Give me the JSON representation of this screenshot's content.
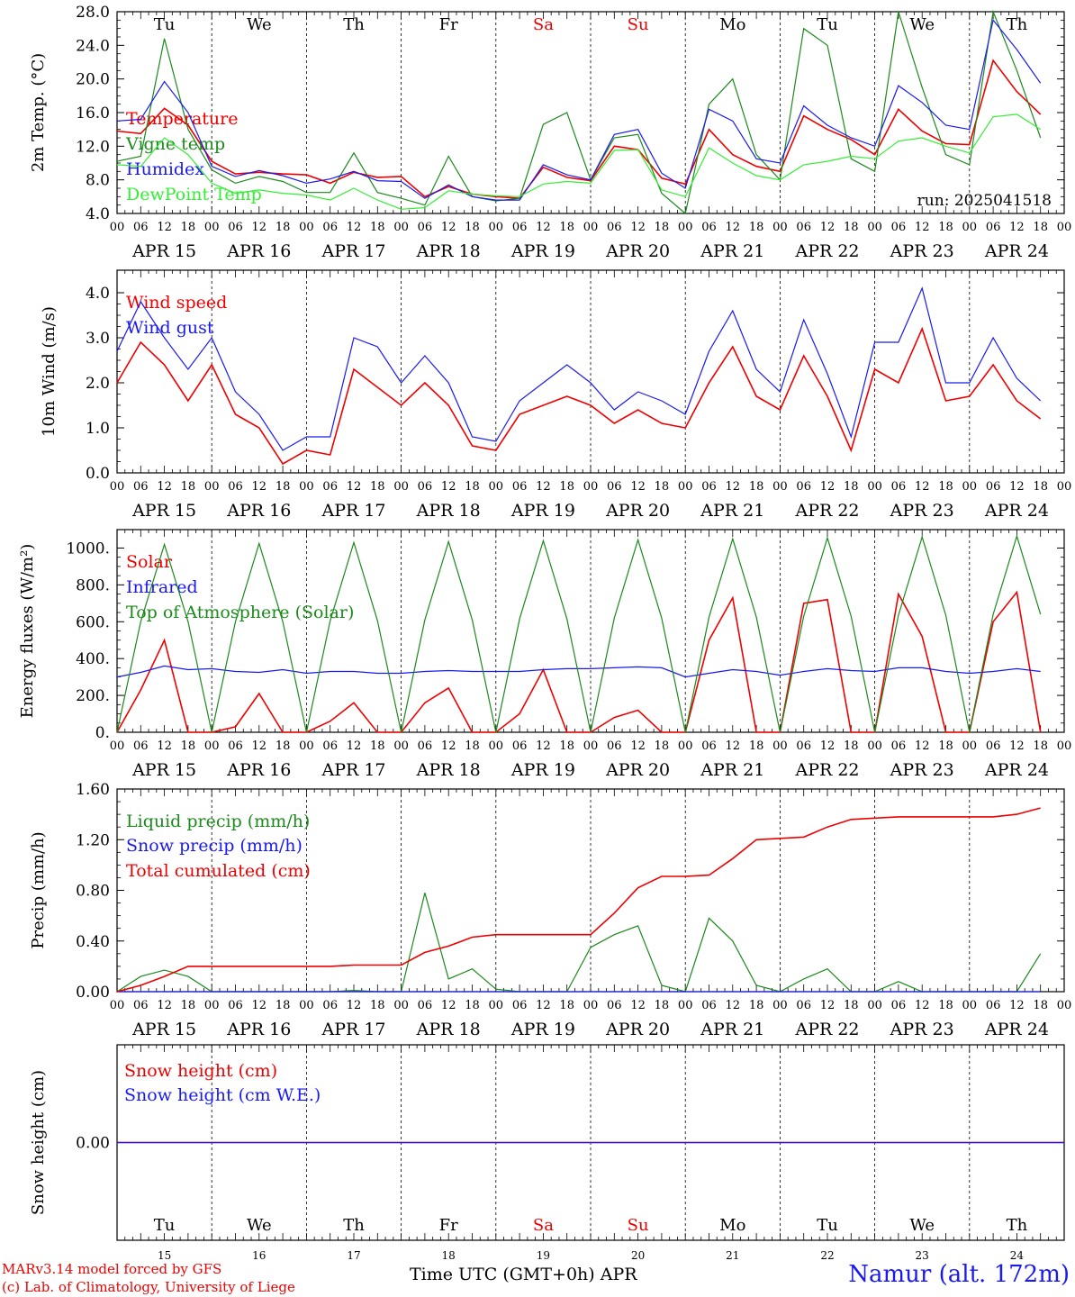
{
  "colors": {
    "red": "#ee0000",
    "green": "#1b8a1b",
    "blue": "#1a1aee",
    "lightgreen": "#33ee33",
    "black": "#000000",
    "weekend": "#ee0000"
  },
  "days": {
    "top": [
      "Tu",
      "We",
      "Th",
      "Fr",
      "Sa",
      "Su",
      "Mo",
      "Tu",
      "We",
      "Th"
    ],
    "weekend_index": [
      4,
      5
    ],
    "dates": [
      "APR 15",
      "APR 16",
      "APR 17",
      "APR 18",
      "APR 19",
      "APR 20",
      "APR 21",
      "APR 22",
      "APR 23",
      "APR 24"
    ],
    "numbers": [
      "15",
      "16",
      "17",
      "18",
      "19",
      "20",
      "21",
      "22",
      "23",
      "24"
    ],
    "hour_ticks": [
      "00",
      "06",
      "12",
      "18"
    ],
    "end_tick": "00"
  },
  "run_label": "run: 2025041518",
  "footer": {
    "credit_1": "MARv3.14 model forced by GFS",
    "credit_2": "(c) Lab. of Climatology, University of Liege",
    "x_title": "Time UTC (GMT+0h) APR",
    "station": "Namur (alt. 172m)"
  },
  "chart_data": [
    {
      "type": "line",
      "ylabel": "2m Temp. (°C)",
      "ylim": [
        4.0,
        28.0
      ],
      "yticks": [
        "4.0",
        "8.0",
        "12.0",
        "16.0",
        "20.0",
        "24.0",
        "28.0"
      ],
      "x_unit": "hours since Apr 15 00 UTC, 6-hourly",
      "series": [
        {
          "name": "Temperature",
          "color": "red",
          "values": [
            13.8,
            13.5,
            16.5,
            14.5,
            10.2,
            8.7,
            8.9,
            8.7,
            8.6,
            7.6,
            8.9,
            8.3,
            8.4,
            6.0,
            7.2,
            6.3,
            6.0,
            5.8,
            9.5,
            8.3,
            7.9,
            12.0,
            11.6,
            8.2,
            7.5,
            14.0,
            11.0,
            9.6,
            9.0,
            15.6,
            14.0,
            12.8,
            11.0,
            16.4,
            13.8,
            12.3,
            12.2,
            22.2,
            18.5,
            15.8
          ]
        },
        {
          "name": "Vigne temp",
          "color": "green",
          "values": [
            10.2,
            10.8,
            24.8,
            14.0,
            9.2,
            7.6,
            8.4,
            7.8,
            6.5,
            6.5,
            11.2,
            6.5,
            5.8,
            5.0,
            10.8,
            6.0,
            5.5,
            5.8,
            14.6,
            16.0,
            8.0,
            13.0,
            13.4,
            6.4,
            4.0,
            17.0,
            20.0,
            11.0,
            8.0,
            26.0,
            24.0,
            10.5,
            9.0,
            28.0,
            19.0,
            11.0,
            9.8,
            28.0,
            21.0,
            13.0
          ]
        },
        {
          "name": "Humidex",
          "color": "blue",
          "values": [
            15.0,
            15.2,
            19.7,
            16.0,
            9.6,
            8.4,
            9.1,
            8.5,
            7.6,
            8.1,
            9.0,
            7.9,
            7.8,
            5.8,
            7.4,
            6.0,
            5.6,
            5.6,
            9.8,
            8.6,
            8.0,
            13.4,
            14.0,
            8.8,
            7.0,
            16.4,
            15.0,
            10.5,
            10.0,
            16.8,
            14.5,
            13.0,
            12.0,
            19.2,
            17.2,
            14.5,
            14.0,
            27.0,
            23.5,
            19.5
          ]
        },
        {
          "name": "DewPoint Temp",
          "color": "lightgreen",
          "values": [
            9.8,
            9.6,
            13.0,
            11.0,
            7.6,
            6.4,
            6.8,
            6.4,
            6.2,
            5.6,
            7.0,
            5.6,
            4.5,
            4.7,
            6.7,
            6.3,
            6.1,
            6.0,
            7.5,
            7.8,
            7.6,
            11.5,
            11.6,
            6.8,
            6.0,
            11.8,
            10.0,
            8.5,
            8.0,
            9.8,
            10.2,
            10.8,
            10.5,
            12.6,
            13.0,
            12.0,
            11.2,
            15.5,
            15.8,
            14.0
          ]
        }
      ]
    },
    {
      "type": "line",
      "ylabel": "10m Wind (m/s)",
      "ylim": [
        0.0,
        4.5
      ],
      "yticks": [
        "0.0",
        "1.0",
        "2.0",
        "3.0",
        "4.0"
      ],
      "series": [
        {
          "name": "Wind speed",
          "color": "red",
          "values": [
            2.0,
            2.9,
            2.4,
            1.6,
            2.4,
            1.3,
            1.0,
            0.2,
            0.5,
            0.4,
            2.3,
            1.9,
            1.5,
            2.0,
            1.5,
            0.6,
            0.5,
            1.3,
            1.5,
            1.7,
            1.5,
            1.1,
            1.4,
            1.1,
            1.0,
            2.0,
            2.8,
            1.7,
            1.4,
            2.6,
            1.7,
            0.5,
            2.3,
            2.0,
            3.2,
            1.6,
            1.7,
            2.4,
            1.6,
            1.2
          ]
        },
        {
          "name": "Wind gust",
          "color": "blue",
          "values": [
            2.7,
            3.8,
            3.0,
            2.3,
            3.0,
            1.8,
            1.3,
            0.5,
            0.8,
            0.8,
            3.0,
            2.8,
            2.0,
            2.6,
            2.0,
            0.8,
            0.7,
            1.6,
            2.0,
            2.4,
            2.0,
            1.4,
            1.8,
            1.6,
            1.3,
            2.7,
            3.6,
            2.3,
            1.8,
            3.4,
            2.2,
            0.8,
            2.9,
            2.9,
            4.1,
            2.0,
            2.0,
            3.0,
            2.1,
            1.6
          ]
        }
      ]
    },
    {
      "type": "line",
      "ylabel": "Energy fluxes (W/m²)",
      "ylim": [
        0,
        1100
      ],
      "yticks": [
        "0.",
        "200.",
        "400.",
        "600.",
        "800.",
        "1000."
      ],
      "series": [
        {
          "name": "Solar",
          "color": "red",
          "values": [
            0,
            230,
            500,
            0,
            0,
            30,
            210,
            0,
            0,
            60,
            160,
            0,
            0,
            160,
            240,
            0,
            0,
            100,
            340,
            0,
            0,
            80,
            120,
            0,
            0,
            500,
            730,
            0,
            0,
            700,
            720,
            0,
            0,
            750,
            520,
            0,
            0,
            600,
            760,
            0
          ]
        },
        {
          "name": "Infrared",
          "color": "blue",
          "values": [
            300,
            325,
            360,
            340,
            345,
            330,
            325,
            340,
            320,
            330,
            330,
            320,
            320,
            330,
            335,
            330,
            330,
            330,
            340,
            345,
            345,
            350,
            355,
            350,
            300,
            320,
            340,
            330,
            310,
            330,
            345,
            335,
            330,
            350,
            350,
            330,
            320,
            330,
            345,
            330
          ]
        },
        {
          "name": "Top of Atmosphere (Solar)",
          "color": "green",
          "values": [
            0,
            600,
            1020,
            600,
            0,
            600,
            1025,
            600,
            0,
            605,
            1030,
            605,
            0,
            610,
            1035,
            610,
            0,
            615,
            1040,
            615,
            0,
            620,
            1045,
            620,
            0,
            625,
            1050,
            625,
            0,
            630,
            1055,
            630,
            0,
            635,
            1060,
            635,
            0,
            640,
            1065,
            640
          ]
        }
      ]
    },
    {
      "type": "line",
      "ylabel": "Precip (mm/h)",
      "ylim": [
        0.0,
        1.6
      ],
      "yticks": [
        "0.00",
        "0.40",
        "0.80",
        "1.20",
        "1.60"
      ],
      "series": [
        {
          "name": "Liquid precip (mm/h)",
          "color": "green",
          "values": [
            0.0,
            0.12,
            0.17,
            0.12,
            0.0,
            0.0,
            0.0,
            0.0,
            0.0,
            0.0,
            0.01,
            0.0,
            0.0,
            0.78,
            0.1,
            0.18,
            0.02,
            0.0,
            0.0,
            0.0,
            0.35,
            0.45,
            0.52,
            0.05,
            0.0,
            0.58,
            0.4,
            0.05,
            0.0,
            0.1,
            0.18,
            0.0,
            0.0,
            0.08,
            0.0,
            0.0,
            0.0,
            0.0,
            0.0,
            0.3
          ]
        },
        {
          "name": "Snow precip (mm/h)",
          "color": "blue",
          "values": [
            0,
            0,
            0,
            0,
            0,
            0,
            0,
            0,
            0,
            0,
            0,
            0,
            0,
            0,
            0,
            0,
            0,
            0,
            0,
            0,
            0,
            0,
            0,
            0,
            0,
            0,
            0,
            0,
            0,
            0,
            0,
            0,
            0,
            0,
            0,
            0,
            0,
            0,
            0,
            0
          ]
        },
        {
          "name": "Total cumulated (cm)",
          "color": "red",
          "values": [
            0.0,
            0.05,
            0.12,
            0.2,
            0.2,
            0.2,
            0.2,
            0.2,
            0.2,
            0.2,
            0.21,
            0.21,
            0.21,
            0.31,
            0.36,
            0.43,
            0.45,
            0.45,
            0.45,
            0.45,
            0.45,
            0.62,
            0.82,
            0.91,
            0.91,
            0.92,
            1.05,
            1.2,
            1.21,
            1.22,
            1.3,
            1.36,
            1.37,
            1.38,
            1.38,
            1.38,
            1.38,
            1.38,
            1.4,
            1.45
          ]
        }
      ]
    },
    {
      "type": "line",
      "ylabel": "Snow height (cm)",
      "yticks": [
        "0.00"
      ],
      "series": [
        {
          "name": "Snow height (cm)",
          "color": "red",
          "values": [
            0,
            0
          ]
        },
        {
          "name": "Snow height (cm W.E.)",
          "color": "blue",
          "values": [
            0,
            0
          ]
        }
      ]
    }
  ]
}
